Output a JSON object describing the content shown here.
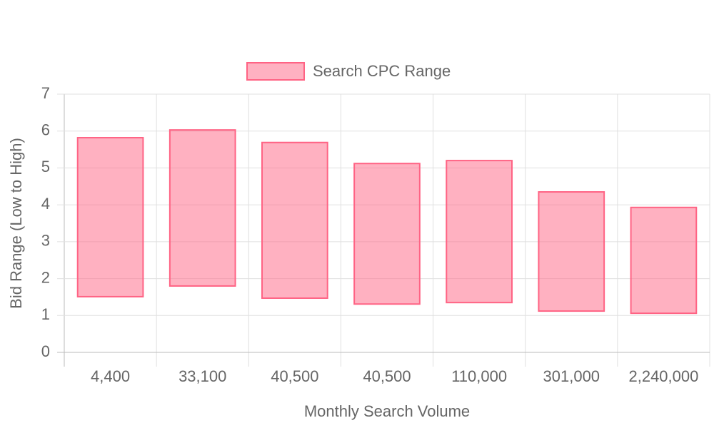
{
  "chart_data": {
    "type": "floating-bar",
    "categories": [
      "4,400",
      "33,100",
      "40,500",
      "40,500",
      "110,000",
      "301,000",
      "2,240,000"
    ],
    "series": [
      {
        "name": "Search CPC Range",
        "color": "#ff6384",
        "values": [
          [
            1.51,
            5.82
          ],
          [
            1.8,
            6.03
          ],
          [
            1.47,
            5.69
          ],
          [
            1.31,
            5.12
          ],
          [
            1.35,
            5.2
          ],
          [
            1.12,
            4.35
          ],
          [
            1.06,
            3.93
          ]
        ]
      }
    ],
    "x_label": "Monthly Search Volume",
    "y_label": "Bid Range (Low to High)",
    "ylim": [
      0,
      7
    ],
    "yticks": [
      0,
      1,
      2,
      3,
      4,
      5,
      6,
      7
    ],
    "grid": true,
    "legend": "top"
  }
}
